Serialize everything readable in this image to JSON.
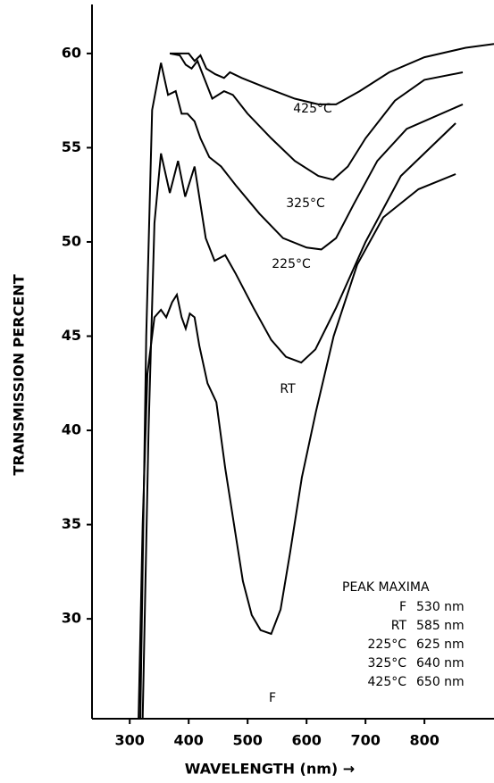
{
  "chart_data": {
    "type": "line",
    "x_label": "WAVELENGTH (nm) →",
    "y_label": "TRANSMISSION PERCENT",
    "xlim": [
      236,
      918
    ],
    "ylim": [
      24.7,
      62.6
    ],
    "xticks": [
      300,
      400,
      500,
      600,
      700,
      800
    ],
    "yticks": [
      30,
      35,
      40,
      45,
      50,
      55,
      60
    ],
    "grid": false,
    "series": [
      {
        "name": "425°C",
        "color": "#000000",
        "x": [
          368,
          400,
          410,
          420,
          430,
          445,
          460,
          470,
          490,
          530,
          580,
          620,
          650,
          690,
          740,
          800,
          870,
          918
        ],
        "values": [
          60,
          60,
          59.6,
          59.9,
          59.2,
          58.9,
          58.7,
          59,
          58.7,
          58.2,
          57.6,
          57.3,
          57.3,
          58,
          59,
          59.8,
          60.3,
          60.5
        ]
      },
      {
        "name": "325°C",
        "color": "#000000",
        "x": [
          368,
          385,
          395,
          405,
          415,
          425,
          440,
          460,
          475,
          500,
          540,
          580,
          620,
          645,
          670,
          700,
          750,
          800,
          865
        ],
        "values": [
          60,
          59.9,
          59.4,
          59.2,
          59.6,
          58.8,
          57.6,
          58,
          57.8,
          56.8,
          55.5,
          54.3,
          53.5,
          53.3,
          54,
          55.5,
          57.5,
          58.6,
          59
        ]
      },
      {
        "name": "225°C",
        "color": "#000000",
        "x": [
          318,
          328,
          338,
          353,
          365,
          378,
          388,
          398,
          410,
          420,
          435,
          455,
          480,
          520,
          560,
          600,
          625,
          650,
          680,
          720,
          770,
          865
        ],
        "values": [
          24.7,
          45,
          57,
          59.5,
          57.8,
          58,
          56.8,
          56.8,
          56.4,
          55.5,
          54.5,
          54,
          53,
          51.5,
          50.2,
          49.7,
          49.6,
          50.2,
          52,
          54.3,
          56,
          57.3
        ]
      },
      {
        "name": "RT",
        "color": "#000000",
        "x": [
          322,
          332,
          342,
          353,
          368,
          382,
          394,
          410,
          429,
          444,
          462,
          480,
          510,
          540,
          565,
          591,
          615,
          650,
          700,
          760,
          853
        ],
        "values": [
          24.7,
          40,
          51,
          54.7,
          52.6,
          54.3,
          52.4,
          54,
          50.2,
          49,
          49.3,
          48.3,
          46.5,
          44.8,
          43.9,
          43.6,
          44.3,
          46.5,
          50,
          53.5,
          56.3
        ]
      },
      {
        "name": "F",
        "color": "#000000",
        "x": [
          315,
          322,
          330,
          342,
          353,
          362,
          372,
          380,
          388,
          395,
          402,
          410,
          418,
          432,
          447,
          462,
          477,
          492,
          507,
          522,
          540,
          556,
          572,
          592,
          616,
          646,
          686,
          730,
          790,
          853
        ],
        "values": [
          24.7,
          35,
          43,
          46,
          46.4,
          46,
          46.8,
          47.2,
          46,
          45.4,
          46.2,
          46,
          44.5,
          42.5,
          41.5,
          38,
          35,
          32,
          30.2,
          29.4,
          29.2,
          30.5,
          33.5,
          37.5,
          41,
          45,
          48.8,
          51.3,
          52.8,
          53.6
        ]
      }
    ],
    "peak_table": {
      "title": "PEAK MAXIMA",
      "rows": [
        [
          "F",
          "530 nm"
        ],
        [
          "RT",
          "585 nm"
        ],
        [
          "225°C",
          "625 nm"
        ],
        [
          "325°C",
          "640 nm"
        ],
        [
          "425°C",
          "650 nm"
        ]
      ]
    }
  }
}
